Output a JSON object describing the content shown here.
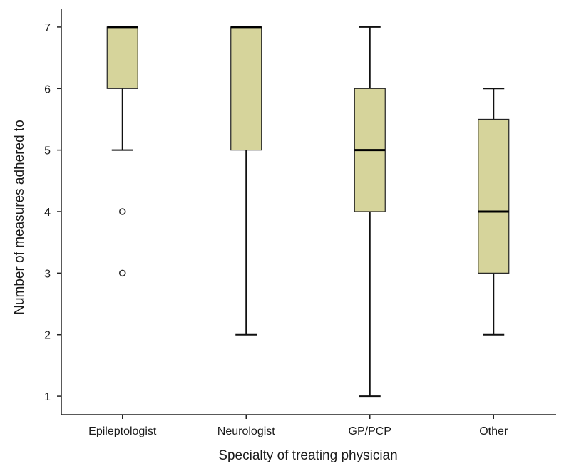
{
  "chart_data": {
    "type": "boxplot",
    "xlabel": "Specialty of treating physician",
    "ylabel": "Number of measures adhered to",
    "ylim": [
      0.7,
      7.3
    ],
    "yticks": [
      1,
      2,
      3,
      4,
      5,
      6,
      7
    ],
    "grid": false,
    "box_color": "#d6d49b",
    "categories": [
      "Epileptologist",
      "Neurologist",
      "GP/PCP",
      "Other"
    ],
    "boxes": [
      {
        "name": "Epileptologist",
        "whisker_low": 5,
        "q1": 6,
        "median": 7,
        "q3": 7,
        "whisker_high": 7,
        "outliers": [
          4,
          3
        ]
      },
      {
        "name": "Neurologist",
        "whisker_low": 2,
        "q1": 5,
        "median": 7,
        "q3": 7,
        "whisker_high": 7,
        "outliers": []
      },
      {
        "name": "GP/PCP",
        "whisker_low": 1,
        "q1": 4,
        "median": 5,
        "q3": 6,
        "whisker_high": 7,
        "outliers": []
      },
      {
        "name": "Other",
        "whisker_low": 2,
        "q1": 3,
        "median": 4,
        "q3": 5.5,
        "whisker_high": 6,
        "outliers": []
      }
    ]
  }
}
